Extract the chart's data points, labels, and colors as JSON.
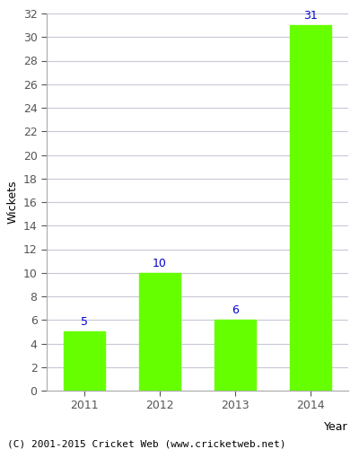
{
  "categories": [
    "2011",
    "2012",
    "2013",
    "2014"
  ],
  "values": [
    5,
    10,
    6,
    31
  ],
  "bar_color": "#66ff00",
  "bar_edge_color": "#66ff00",
  "label_color": "#0000cc",
  "xlabel": "Year",
  "ylabel": "Wickets",
  "ylim": [
    0,
    32
  ],
  "yticks": [
    0,
    2,
    4,
    6,
    8,
    10,
    12,
    14,
    16,
    18,
    20,
    22,
    24,
    26,
    28,
    30,
    32
  ],
  "footer": "(C) 2001-2015 Cricket Web (www.cricketweb.net)",
  "background_color": "#ffffff",
  "plot_bg_color": "#ffffff",
  "grid_color": "#c8c8d8",
  "label_fontsize": 9,
  "axis_fontsize": 9,
  "footer_fontsize": 8,
  "bar_width": 0.55
}
